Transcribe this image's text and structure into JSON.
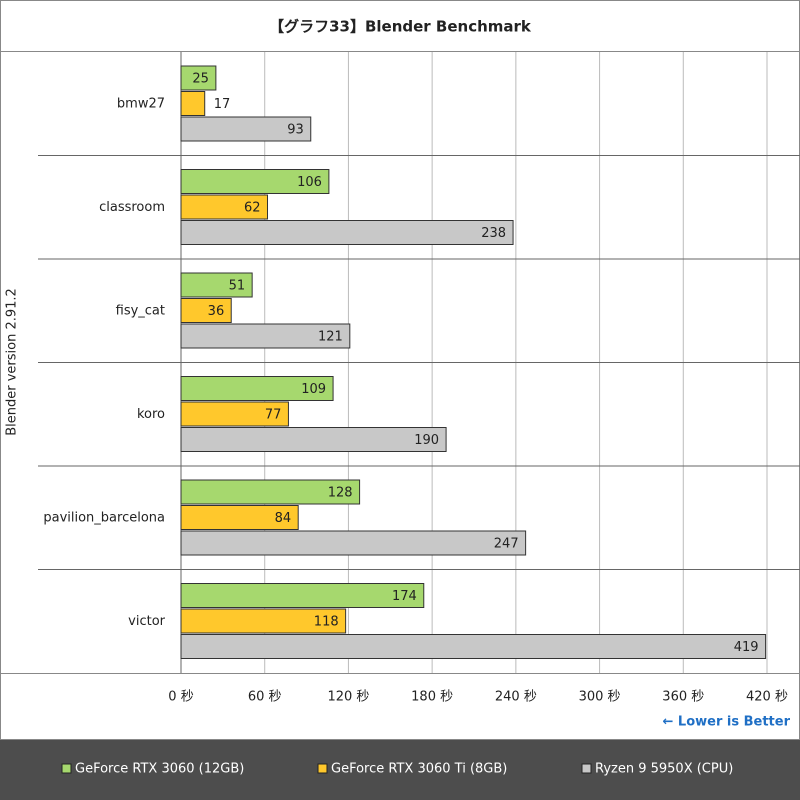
{
  "chart_data": {
    "type": "bar",
    "orientation": "horizontal",
    "title": "【グラフ33】Blender Benchmark",
    "ylabel": "Blender version 2.91.2",
    "categories": [
      "bmw27",
      "classroom",
      "fisy_cat",
      "koro",
      "pavilion_barcelona",
      "victor"
    ],
    "series": [
      {
        "name": "GeForce RTX 3060 (12GB)",
        "color": "#a6d86e",
        "values": [
          25,
          106,
          51,
          109,
          128,
          174
        ]
      },
      {
        "name": "GeForce RTX 3060 Ti (8GB)",
        "color": "#ffc82c",
        "values": [
          17,
          62,
          36,
          77,
          84,
          118
        ]
      },
      {
        "name": "Ryzen 9 5950X (CPU)",
        "color": "#c8c8c8",
        "values": [
          93,
          238,
          121,
          190,
          247,
          419
        ]
      }
    ],
    "xlim": [
      0,
      420
    ],
    "xticks": [
      {
        "value": 0,
        "label": "0 秒"
      },
      {
        "value": 60,
        "label": "60 秒"
      },
      {
        "value": 120,
        "label": "120 秒"
      },
      {
        "value": 180,
        "label": "180 秒"
      },
      {
        "value": 240,
        "label": "240 秒"
      },
      {
        "value": 300,
        "label": "300 秒"
      },
      {
        "value": 360,
        "label": "360 秒"
      },
      {
        "value": 420,
        "label": "420 秒"
      }
    ],
    "grid": true,
    "annotation": "← Lower is Better"
  }
}
